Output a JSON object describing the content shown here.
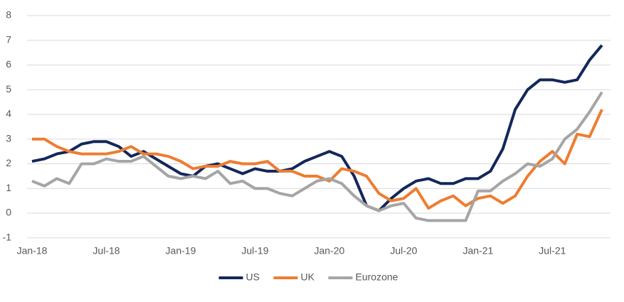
{
  "chart_data": {
    "type": "line",
    "categories": [
      "Jan-18",
      null,
      null,
      null,
      null,
      null,
      "Jul-18",
      null,
      null,
      null,
      null,
      null,
      "Jan-19",
      null,
      null,
      null,
      null,
      null,
      "Jul-19",
      null,
      null,
      null,
      null,
      null,
      "Jan-20",
      null,
      null,
      null,
      null,
      null,
      "Jul-20",
      null,
      null,
      null,
      null,
      null,
      "Jan-21",
      null,
      null,
      null,
      null,
      null,
      "Jul-21",
      null,
      null,
      null,
      null
    ],
    "series": [
      {
        "name": "US",
        "color": "#13275a",
        "values": [
          2.1,
          2.2,
          2.4,
          2.5,
          2.8,
          2.9,
          2.9,
          2.7,
          2.3,
          2.5,
          2.2,
          1.9,
          1.6,
          1.5,
          1.9,
          2.0,
          1.8,
          1.6,
          1.8,
          1.7,
          1.7,
          1.8,
          2.1,
          2.3,
          2.5,
          2.3,
          1.5,
          0.3,
          0.1,
          0.6,
          1.0,
          1.3,
          1.4,
          1.2,
          1.2,
          1.4,
          1.4,
          1.7,
          2.6,
          4.2,
          5.0,
          5.4,
          5.4,
          5.3,
          5.4,
          6.2,
          6.8
        ]
      },
      {
        "name": "UK",
        "color": "#ed7d31",
        "values": [
          3.0,
          3.0,
          2.7,
          2.5,
          2.4,
          2.4,
          2.4,
          2.5,
          2.7,
          2.4,
          2.4,
          2.3,
          2.1,
          1.8,
          1.9,
          1.9,
          2.1,
          2.0,
          2.0,
          2.1,
          1.7,
          1.7,
          1.5,
          1.5,
          1.3,
          1.8,
          1.7,
          1.5,
          0.8,
          0.5,
          0.6,
          1.0,
          0.2,
          0.5,
          0.7,
          0.3,
          0.6,
          0.7,
          0.4,
          0.7,
          1.5,
          2.1,
          2.5,
          2.0,
          3.2,
          3.1,
          4.2
        ]
      },
      {
        "name": "Eurozone",
        "color": "#a5a5a5",
        "values": [
          1.3,
          1.1,
          1.4,
          1.2,
          2.0,
          2.0,
          2.2,
          2.1,
          2.1,
          2.3,
          1.9,
          1.5,
          1.4,
          1.5,
          1.4,
          1.7,
          1.2,
          1.3,
          1.0,
          1.0,
          0.8,
          0.7,
          1.0,
          1.3,
          1.4,
          1.2,
          0.7,
          0.3,
          0.1,
          0.3,
          0.4,
          -0.2,
          -0.3,
          -0.3,
          -0.3,
          -0.3,
          0.9,
          0.9,
          1.3,
          1.6,
          2.0,
          1.9,
          2.2,
          3.0,
          3.4,
          4.1,
          4.9
        ]
      }
    ],
    "ylim": [
      -1,
      8
    ],
    "yticks": [
      -1,
      0,
      1,
      2,
      3,
      4,
      5,
      6,
      7,
      8
    ],
    "grid": true,
    "legend": "bottom"
  }
}
